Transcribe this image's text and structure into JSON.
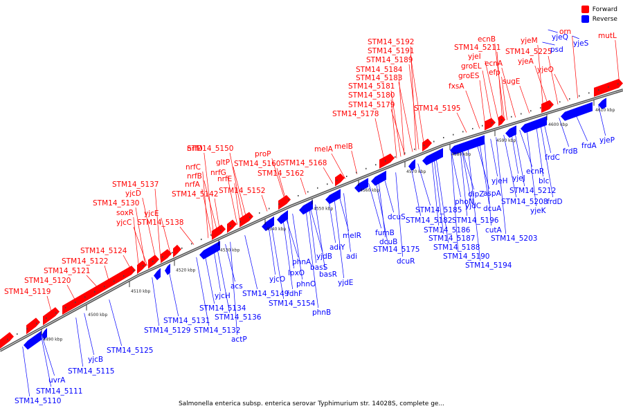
{
  "legend": {
    "forward_label": "Forward",
    "forward_color": "#ff0000",
    "reverse_label": "Reverse",
    "reverse_color": "#0000ff"
  },
  "caption": "Salmonella enterica subsp. enterica serovar Typhimurium str. 14028S, complete ge...",
  "ticks": [
    "4490 kbp",
    "4500 kbp",
    "4510 kbp",
    "4520 kbp",
    "4530 kbp",
    "4540 kbp",
    "4550 kbp",
    "4560 kbp",
    "4570 kbp",
    "4580 kbp",
    "4590 kbp",
    "4600 kbp",
    "4610 kbp"
  ],
  "forward_genes": [
    "STM14_5119",
    "STM14_5120",
    "STM14_5121",
    "STM14_5122",
    "STM14_5124",
    "yjcC",
    "soxR",
    "STM14_5130",
    "yjcD",
    "STM14_5137",
    "yjcE",
    "STM14_5138",
    "STM14_5142",
    "nrfA",
    "nrfB",
    "nrfC",
    "nrfD",
    "STM14_5150",
    "nrfE",
    "nrfG",
    "gltP",
    "STM14_5152",
    "STM14_5160",
    "proP",
    "STM14_5162",
    "STM14_5168",
    "melA",
    "melB",
    "STM14_5178",
    "STM14_5179",
    "STM14_5180",
    "STM14_5181",
    "STM14_5183",
    "STM14_5184",
    "STM14_5189",
    "STM14_5191",
    "STM14_5192",
    "STM14_5195",
    "fxsA",
    "groES",
    "groEL",
    "yjeI",
    "STM14_5211",
    "ecnB",
    "ecnA",
    "efp",
    "sugE",
    "yjeA",
    "yjeM",
    "STM14_5225",
    "yjeO",
    "orn",
    "mutL"
  ],
  "reverse_genes": [
    "STM14_5110",
    "STM14_5111",
    "uvrA",
    "STM14_5115",
    "yjcB",
    "STM14_5125",
    "STM14_5129",
    "STM14_5131",
    "STM14_5132",
    "actP",
    "STM14_5134",
    "STM14_5136",
    "yjcH",
    "acs",
    "STM14_5149",
    "yjcO",
    "fdhF",
    "STM14_5154",
    "lpxO",
    "phnO",
    "phnA",
    "basS",
    "basR",
    "yjdB",
    "adiY",
    "yjdE",
    "phnB",
    "adi",
    "melR",
    "fumB",
    "dcuB",
    "dcuS",
    "STM14_5175",
    "dcuR",
    "STM14_5182",
    "STM14_5185",
    "STM14_5186",
    "STM14_5187",
    "STM14_5188",
    "STM14_5190",
    "phoN",
    "STM14_5194",
    "STM14_5196",
    "yjdC",
    "dipZ",
    "cutA",
    "dcuA",
    "aspA",
    "yjeH",
    "STM14_5203",
    "STM14_5208",
    "yjeJ",
    "STM14_5212",
    "ecnR",
    "blc",
    "yjeK",
    "frdD",
    "frdC",
    "frdB",
    "frdA",
    "yjeP",
    "yjeQ",
    "psd",
    "yjeS"
  ]
}
